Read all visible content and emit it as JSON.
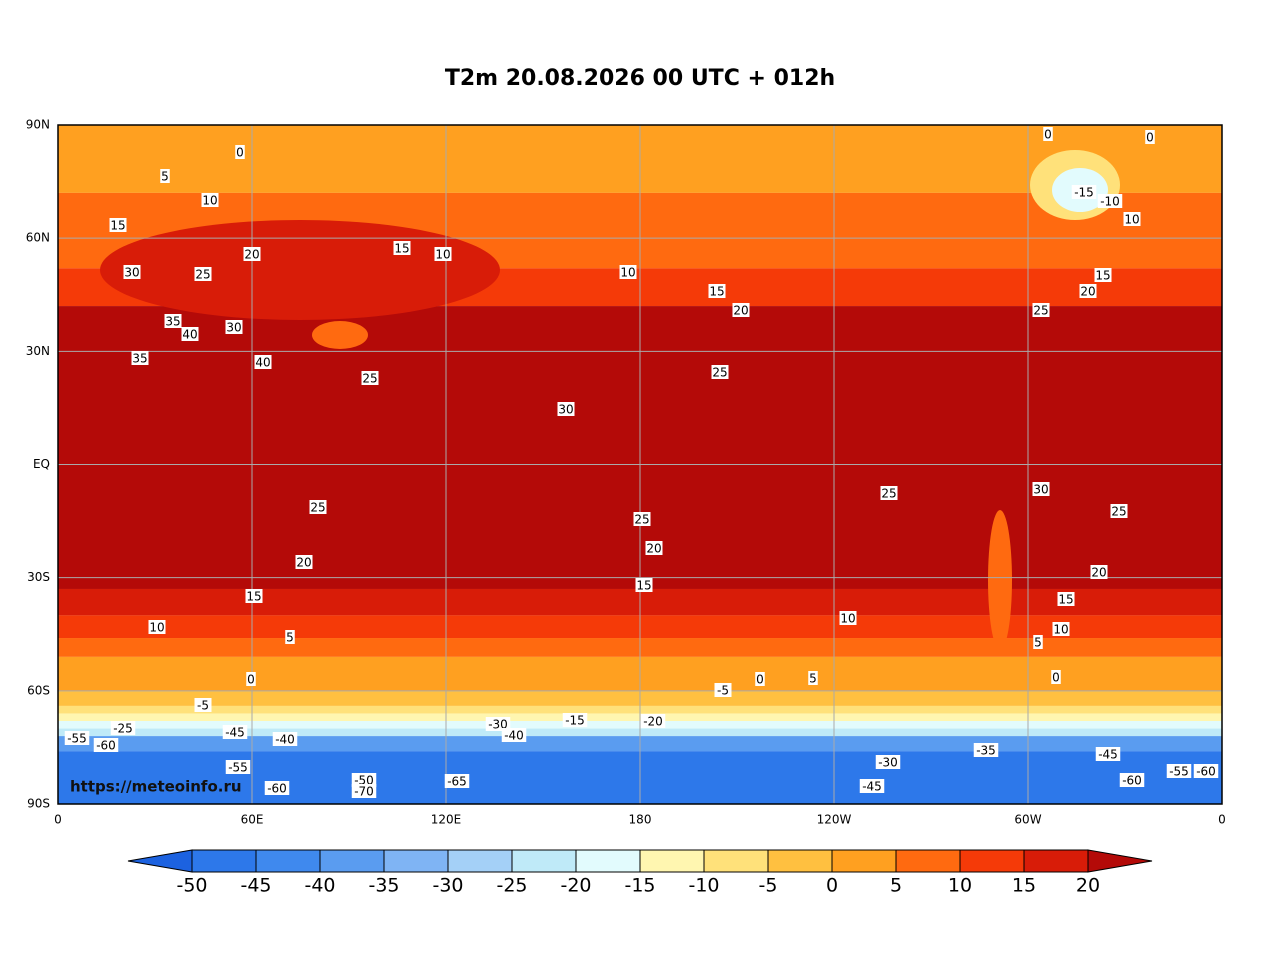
{
  "title": "T2m 20.08.2026 00 UTC + 012h",
  "map": {
    "lat_ticks": [
      "90N",
      "60N",
      "30N",
      "EQ",
      "30S",
      "60S",
      "90S"
    ],
    "lon_ticks": [
      "0",
      "60E",
      "120E",
      "180",
      "120W",
      "60W",
      "0"
    ],
    "contour_labels": [
      "0",
      "5",
      "10",
      "15",
      "20",
      "30",
      "25",
      "35",
      "40",
      "30",
      "35",
      "40",
      "25",
      "30",
      "25",
      "10",
      "15",
      "20",
      "10",
      "15",
      "25",
      "20",
      "15",
      "10",
      "5",
      "0",
      "-5",
      "-25",
      "-45",
      "-40",
      "-55",
      "-60",
      "-55",
      "-60",
      "-50",
      "-70",
      "-65",
      "25",
      "20",
      "15",
      "10",
      "5",
      "0",
      "-5",
      "25",
      "30",
      "25",
      "20",
      "15",
      "10",
      "5",
      "0",
      "-10",
      "-15",
      "10",
      "0",
      "0",
      "15",
      "20",
      "25",
      "-30",
      "-45",
      "-35",
      "-45",
      "-60",
      "-55",
      "-60",
      "-20",
      "-15",
      "-30",
      "-40"
    ]
  },
  "colorbar": {
    "levels": [
      -50,
      -45,
      -40,
      -35,
      -30,
      -25,
      -20,
      -15,
      -10,
      -5,
      0,
      5,
      10,
      15,
      20
    ],
    "colors": [
      "#1c62e0",
      "#2d78ea",
      "#3f89ee",
      "#5a9cf0",
      "#7fb4f4",
      "#a4d0f7",
      "#bfeaf8",
      "#e2fbfd",
      "#fff6b0",
      "#ffe17a",
      "#ffc040",
      "#ffa020",
      "#ff6a10",
      "#f53a08",
      "#d81c08",
      "#b40a08"
    ]
  },
  "watermark": "https://meteoinfo.ru"
}
